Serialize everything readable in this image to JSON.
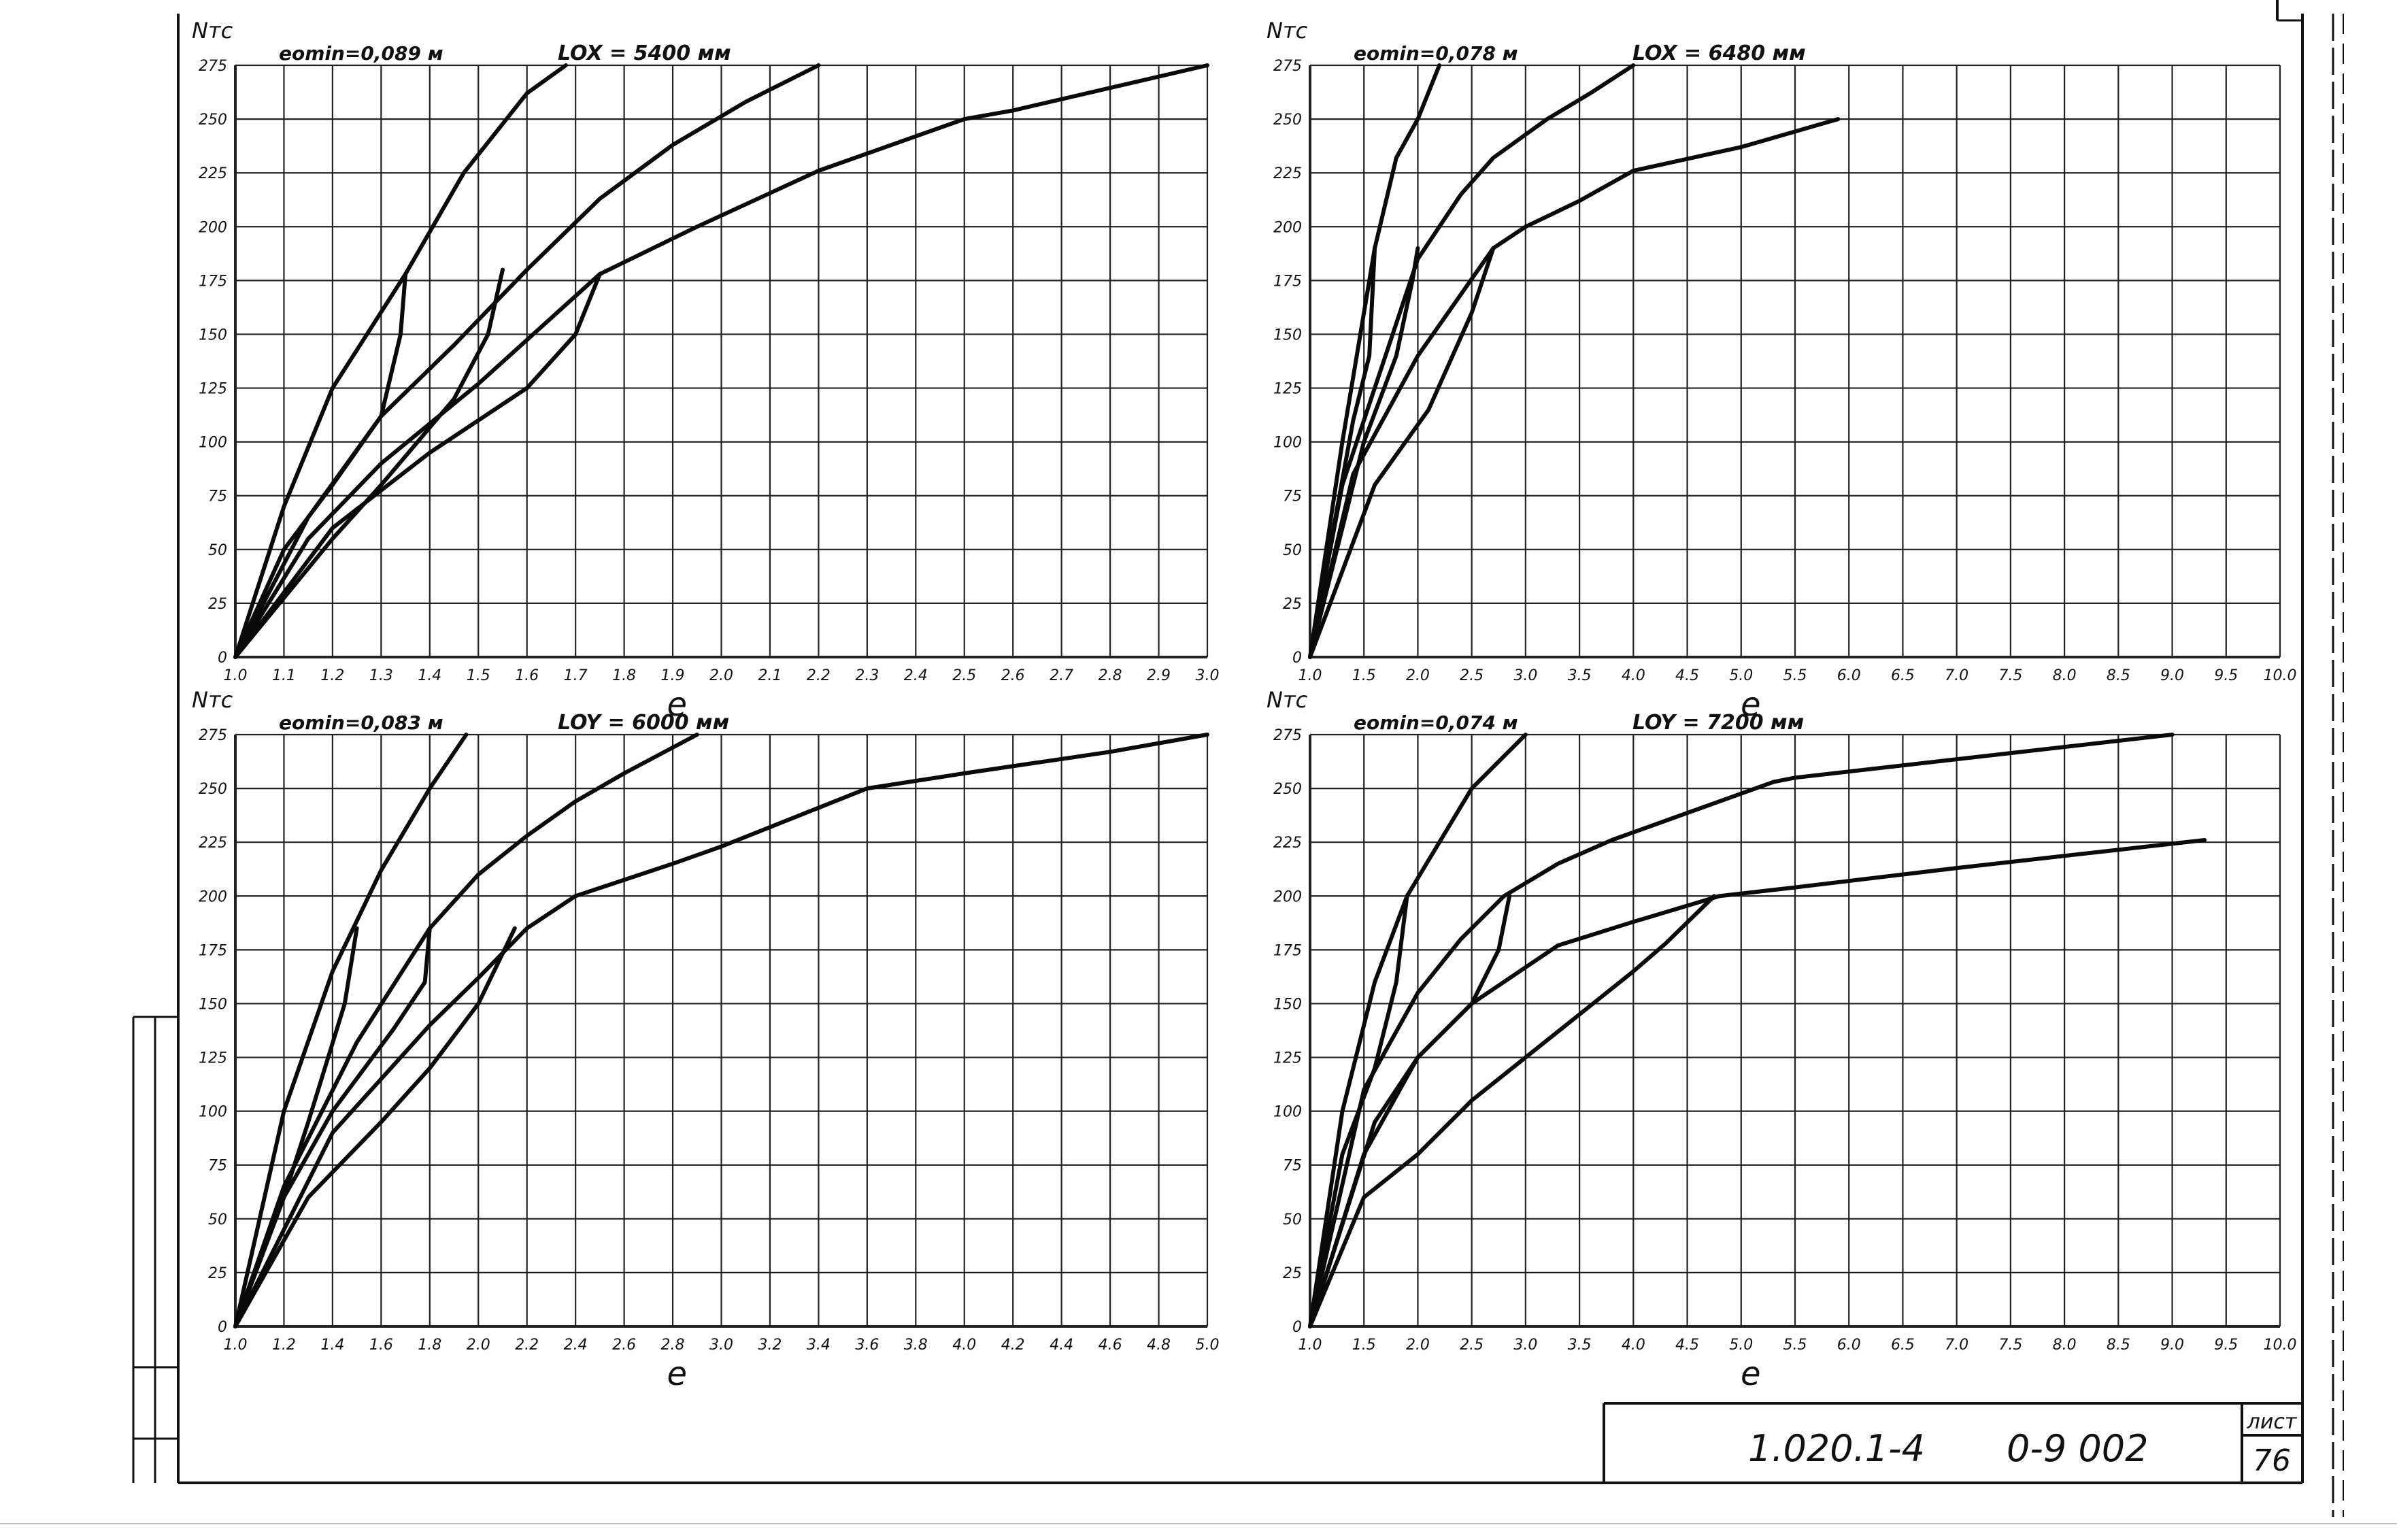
{
  "charts": [
    {
      "ylabel": "Nтс",
      "emin": "eomin=0,089 м",
      "length": "LOX = 5400 мм",
      "xlabel": "е",
      "xticks": [
        "1.0",
        "1.1",
        "1.2",
        "1.3",
        "1.4",
        "1.5",
        "1.6",
        "1.7",
        "1.8",
        "1.9",
        "2.0",
        "2.1",
        "2.2",
        "2.3",
        "2.4",
        "2.5",
        "2.6",
        "2.7",
        "2.8",
        "2.9",
        "3.0"
      ],
      "yticks": [
        "0",
        "25",
        "50",
        "75",
        "100",
        "125",
        "150",
        "175",
        "200",
        "225",
        "250",
        "275"
      ]
    },
    {
      "ylabel": "Nтс",
      "emin": "eomin=0,078 м",
      "length": "LOX = 6480 мм",
      "xlabel": "е",
      "xticks": [
        "1.0",
        "1.5",
        "2.0",
        "2.5",
        "3.0",
        "3.5",
        "4.0",
        "4.5",
        "5.0",
        "5.5",
        "6.0",
        "6.5",
        "7.0",
        "7.5",
        "8.0",
        "8.5",
        "9.0",
        "9.5",
        "10.0"
      ],
      "yticks": [
        "0",
        "25",
        "50",
        "75",
        "100",
        "125",
        "150",
        "175",
        "200",
        "225",
        "250",
        "275"
      ]
    },
    {
      "ylabel": "Nтс",
      "emin": "eomin=0,083 м",
      "length": "LOY = 6000 мм",
      "xlabel": "е",
      "xticks": [
        "1.0",
        "1.2",
        "1.4",
        "1.6",
        "1.8",
        "2.0",
        "2.2",
        "2.4",
        "2.6",
        "2.8",
        "3.0",
        "3.2",
        "3.4",
        "3.6",
        "3.8",
        "4.0",
        "4.2",
        "4.4",
        "4.6",
        "4.8",
        "5.0"
      ],
      "yticks": [
        "0",
        "25",
        "50",
        "75",
        "100",
        "125",
        "150",
        "175",
        "200",
        "225",
        "250",
        "275"
      ]
    },
    {
      "ylabel": "Nтс",
      "emin": "eomin=0,074 м",
      "length": "LOY = 7200 мм",
      "xlabel": "е",
      "xticks": [
        "1.0",
        "1.5",
        "2.0",
        "2.5",
        "3.0",
        "3.5",
        "4.0",
        "4.5",
        "5.0",
        "5.5",
        "6.0",
        "6.5",
        "7.0",
        "7.5",
        "8.0",
        "8.5",
        "9.0",
        "9.5",
        "10.0"
      ],
      "yticks": [
        "0",
        "25",
        "50",
        "75",
        "100",
        "125",
        "150",
        "175",
        "200",
        "225",
        "250",
        "275"
      ]
    }
  ],
  "chart_data": [
    {
      "type": "line",
      "xlim": [
        1.0,
        3.0
      ],
      "ylim": [
        0,
        275
      ],
      "grid": true,
      "series": [
        {
          "values": [
            [
              1.0,
              0
            ],
            [
              1.1,
              70
            ],
            [
              1.2,
              125
            ],
            [
              1.35,
              178
            ],
            [
              1.47,
              225
            ],
            [
              1.6,
              262
            ],
            [
              1.68,
              275
            ]
          ]
        },
        {
          "values": [
            [
              1.0,
              0
            ],
            [
              1.1,
              50
            ],
            [
              1.2,
              80
            ],
            [
              1.3,
              112
            ],
            [
              1.45,
              145
            ],
            [
              1.6,
              180
            ],
            [
              1.75,
              213
            ],
            [
              1.9,
              238
            ],
            [
              2.05,
              258
            ],
            [
              2.2,
              275
            ]
          ]
        },
        {
          "values": [
            [
              1.0,
              0
            ],
            [
              1.15,
              55
            ],
            [
              1.3,
              90
            ],
            [
              1.5,
              127
            ],
            [
              1.75,
              178
            ],
            [
              1.95,
              200
            ],
            [
              2.2,
              226
            ],
            [
              2.5,
              250
            ],
            [
              2.6,
              254
            ],
            [
              3.0,
              275
            ]
          ]
        },
        {
          "values": [
            [
              1.0,
              0
            ],
            [
              1.2,
              60
            ],
            [
              1.4,
              95
            ],
            [
              1.6,
              125
            ],
            [
              1.7,
              150
            ],
            [
              1.75,
              178
            ]
          ]
        },
        {
          "values": [
            [
              1.0,
              0
            ],
            [
              1.2,
              55
            ],
            [
              1.3,
              80
            ],
            [
              1.45,
              120
            ],
            [
              1.52,
              150
            ],
            [
              1.55,
              180
            ]
          ]
        },
        {
          "values": [
            [
              1.0,
              0
            ],
            [
              1.15,
              65
            ],
            [
              1.3,
              112
            ],
            [
              1.34,
              150
            ],
            [
              1.35,
              178
            ]
          ]
        }
      ]
    },
    {
      "type": "line",
      "xlim": [
        1.0,
        10.0
      ],
      "ylim": [
        0,
        275
      ],
      "grid": true,
      "series": [
        {
          "values": [
            [
              1.0,
              0
            ],
            [
              1.3,
              100
            ],
            [
              1.6,
              190
            ],
            [
              1.8,
              232
            ],
            [
              2.0,
              250
            ],
            [
              2.2,
              275
            ]
          ]
        },
        {
          "values": [
            [
              1.0,
              0
            ],
            [
              1.3,
              80
            ],
            [
              1.7,
              140
            ],
            [
              2.0,
              185
            ],
            [
              2.4,
              215
            ],
            [
              2.7,
              232
            ],
            [
              3.2,
              250
            ],
            [
              3.6,
              262
            ],
            [
              4.0,
              275
            ]
          ]
        },
        {
          "values": [
            [
              1.0,
              0
            ],
            [
              1.4,
              85
            ],
            [
              2.0,
              140
            ],
            [
              2.7,
              190
            ],
            [
              3.0,
              200
            ],
            [
              3.5,
              212
            ],
            [
              4.0,
              226
            ],
            [
              5.0,
              237
            ],
            [
              5.9,
              250
            ]
          ]
        },
        {
          "values": [
            [
              1.0,
              0
            ],
            [
              1.6,
              80
            ],
            [
              2.1,
              115
            ],
            [
              2.5,
              160
            ],
            [
              2.7,
              190
            ]
          ]
        },
        {
          "values": [
            [
              1.0,
              0
            ],
            [
              1.5,
              100
            ],
            [
              1.8,
              140
            ],
            [
              1.95,
              175
            ],
            [
              2.0,
              190
            ]
          ]
        },
        {
          "values": [
            [
              1.0,
              0
            ],
            [
              1.4,
              110
            ],
            [
              1.55,
              140
            ],
            [
              1.6,
              190
            ]
          ]
        }
      ]
    },
    {
      "type": "line",
      "xlim": [
        1.0,
        5.0
      ],
      "ylim": [
        0,
        275
      ],
      "grid": true,
      "series": [
        {
          "values": [
            [
              1.0,
              0
            ],
            [
              1.2,
              100
            ],
            [
              1.4,
              165
            ],
            [
              1.6,
              212
            ],
            [
              1.8,
              250
            ],
            [
              1.95,
              275
            ]
          ]
        },
        {
          "values": [
            [
              1.0,
              0
            ],
            [
              1.2,
              65
            ],
            [
              1.5,
              132
            ],
            [
              1.8,
              185
            ],
            [
              2.0,
              210
            ],
            [
              2.2,
              228
            ],
            [
              2.4,
              244
            ],
            [
              2.6,
              257
            ],
            [
              2.9,
              275
            ]
          ]
        },
        {
          "values": [
            [
              1.0,
              0
            ],
            [
              1.4,
              90
            ],
            [
              1.8,
              140
            ],
            [
              2.0,
              162
            ],
            [
              2.2,
              185
            ],
            [
              2.4,
              200
            ],
            [
              2.8,
              215
            ],
            [
              3.0,
              223
            ],
            [
              3.6,
              250
            ],
            [
              4.0,
              257
            ],
            [
              4.6,
              267
            ],
            [
              5.0,
              275
            ]
          ]
        },
        {
          "values": [
            [
              1.0,
              0
            ],
            [
              1.3,
              60
            ],
            [
              1.6,
              95
            ],
            [
              1.8,
              120
            ],
            [
              2.0,
              150
            ],
            [
              2.15,
              185
            ]
          ]
        },
        {
          "values": [
            [
              1.0,
              0
            ],
            [
              1.2,
              60
            ],
            [
              1.4,
              100
            ],
            [
              1.65,
              138
            ],
            [
              1.78,
              160
            ],
            [
              1.8,
              185
            ]
          ]
        },
        {
          "values": [
            [
              1.0,
              0
            ],
            [
              1.2,
              60
            ],
            [
              1.3,
              95
            ],
            [
              1.45,
              150
            ],
            [
              1.5,
              185
            ]
          ]
        }
      ]
    },
    {
      "type": "line",
      "xlim": [
        1.0,
        10.0
      ],
      "ylim": [
        0,
        275
      ],
      "grid": true,
      "series": [
        {
          "values": [
            [
              1.0,
              0
            ],
            [
              1.3,
              100
            ],
            [
              1.6,
              160
            ],
            [
              1.9,
              200
            ],
            [
              2.5,
              250
            ],
            [
              3.0,
              275
            ]
          ]
        },
        {
          "values": [
            [
              1.0,
              0
            ],
            [
              1.5,
              110
            ],
            [
              2.0,
              155
            ],
            [
              2.4,
              180
            ],
            [
              2.8,
              200
            ],
            [
              3.3,
              215
            ],
            [
              3.8,
              226
            ],
            [
              4.3,
              235
            ],
            [
              5.3,
              253
            ],
            [
              5.5,
              255
            ],
            [
              9.0,
              275
            ]
          ]
        },
        {
          "values": [
            [
              1.0,
              0
            ],
            [
              1.5,
              80
            ],
            [
              2.0,
              125
            ],
            [
              2.5,
              150
            ],
            [
              3.3,
              177
            ],
            [
              4.0,
              188
            ],
            [
              4.8,
              200
            ],
            [
              5.5,
              204
            ],
            [
              7.0,
              213
            ],
            [
              9.3,
              226
            ]
          ]
        },
        {
          "values": [
            [
              1.0,
              0
            ],
            [
              1.5,
              60
            ],
            [
              2.0,
              80
            ],
            [
              2.5,
              105
            ],
            [
              3.0,
              125
            ],
            [
              3.5,
              145
            ],
            [
              4.0,
              165
            ],
            [
              4.3,
              178
            ],
            [
              4.75,
              200
            ]
          ]
        },
        {
          "values": [
            [
              1.0,
              0
            ],
            [
              1.6,
              95
            ],
            [
              2.0,
              125
            ],
            [
              2.5,
              150
            ],
            [
              2.75,
              175
            ],
            [
              2.85,
              200
            ]
          ]
        },
        {
          "values": [
            [
              1.0,
              0
            ],
            [
              1.3,
              80
            ],
            [
              1.6,
              120
            ],
            [
              1.8,
              160
            ],
            [
              1.9,
              200
            ]
          ]
        }
      ]
    }
  ],
  "stamp": {
    "code": "1.020.1-4",
    "doc": "0-9 002",
    "sheet_label": "лист",
    "sheet_num": "76"
  }
}
